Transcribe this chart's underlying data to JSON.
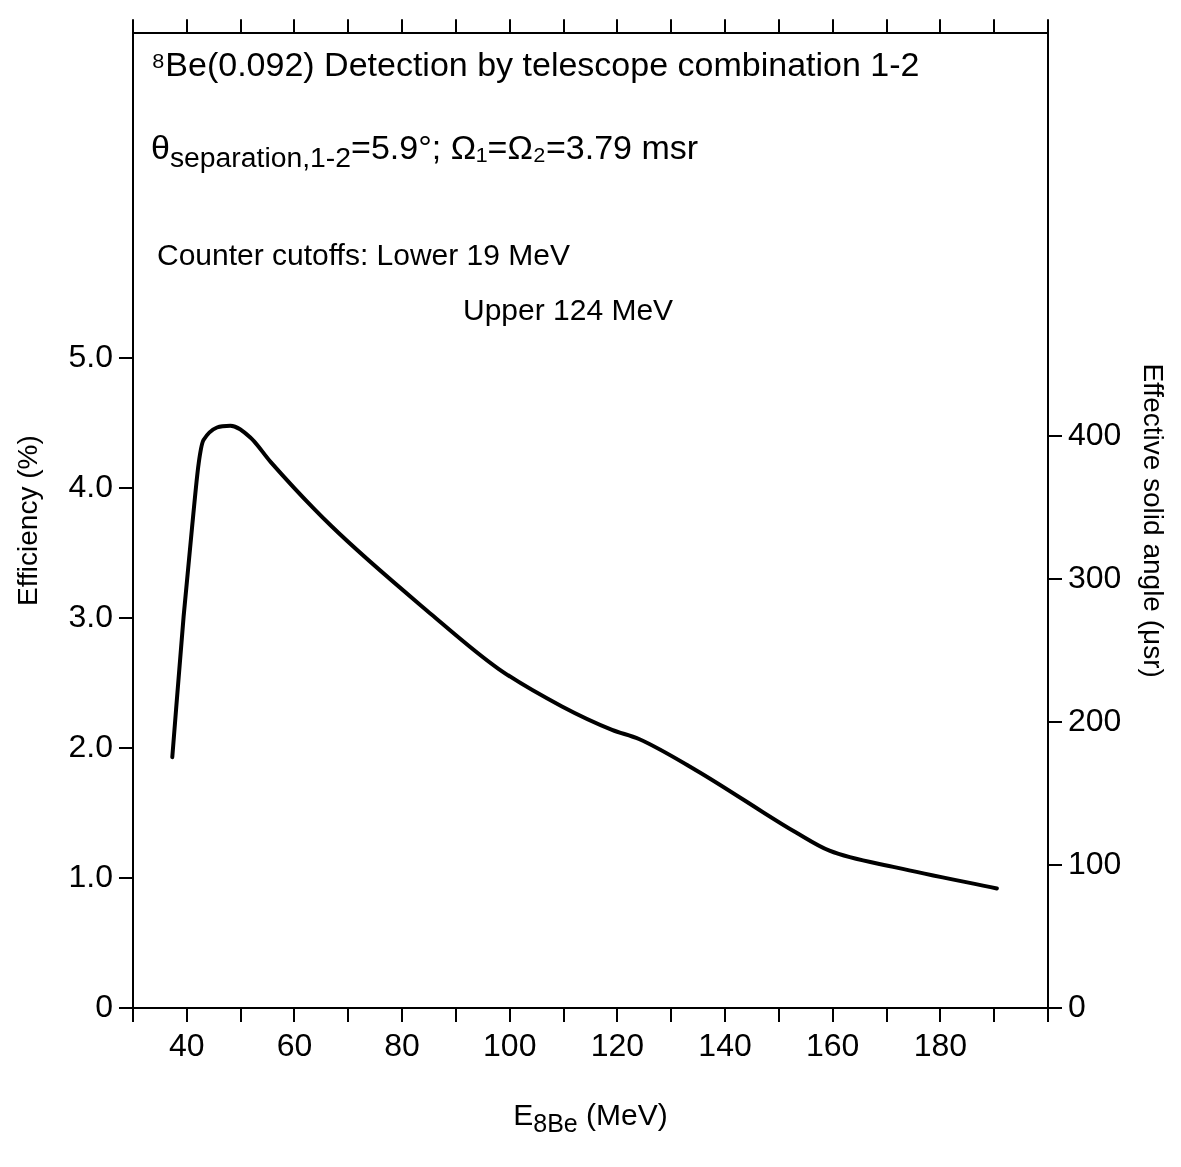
{
  "chart_data": {
    "type": "line",
    "title": "⁸Be(0.092) Detection by telescope combination 1-2",
    "subtitle": "θ$_{separation,1-2}$=5.9°; Ω₁=Ω₂=3.79 msr",
    "annotations": [
      "Counter cutoffs: Lower 19 MeV",
      "Upper 124 MeV"
    ],
    "xlabel": "E$_{8Be}$ (MeV)",
    "ylabel": "Efficiency (%)",
    "y2label": "Effective solid angle (μsr)",
    "x": [
      37.3,
      39.4,
      41.0,
      42.2,
      43.1,
      48.1,
      51.8,
      55.6,
      66.8,
      85.4,
      97.9,
      109.7,
      119.0,
      124.0,
      134.6,
      153.2,
      159.4,
      171.9,
      190.5
    ],
    "series": [
      {
        "color": "#000000",
        "values": [
          1.93,
          3.01,
          3.71,
          4.19,
          4.37,
          4.48,
          4.39,
          4.2,
          3.71,
          3.03,
          2.61,
          2.32,
          2.14,
          2.07,
          1.83,
          1.35,
          1.21,
          1.08,
          0.92
        ]
      }
    ],
    "xlim": [
      30,
      200
    ],
    "xticks": [
      {
        "value": 30,
        "label": null
      },
      40,
      {
        "value": 50,
        "label": null
      },
      60,
      {
        "value": 70,
        "label": null
      },
      80,
      {
        "value": 90,
        "label": null
      },
      100,
      {
        "value": 110,
        "label": null
      },
      120,
      {
        "value": 130,
        "label": null
      },
      140,
      {
        "value": 150,
        "label": null
      },
      160,
      {
        "value": 170,
        "label": null
      },
      180,
      {
        "value": 190,
        "label": null
      },
      {
        "value": 200,
        "label": null
      }
    ],
    "ylim": [
      0,
      7.5
    ],
    "yticks": [
      0,
      {
        "value": 1,
        "label": "1.0"
      },
      {
        "value": 2,
        "label": "2.0"
      },
      {
        "value": 3,
        "label": "3.0"
      },
      {
        "value": 4,
        "label": "4.0"
      },
      {
        "value": 5,
        "label": "5.0"
      }
    ],
    "y2lim": [
      0,
      682
    ],
    "y2ticks": [
      0,
      100,
      200,
      300,
      400
    ],
    "grid": false,
    "legend": false,
    "marker": "none",
    "line_style": "solid"
  }
}
